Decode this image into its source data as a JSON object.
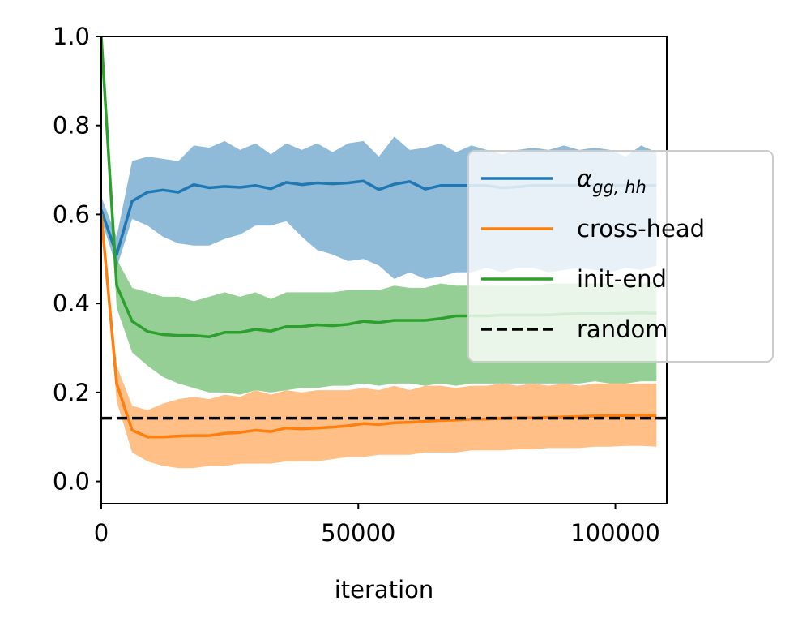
{
  "chart_data": {
    "type": "line",
    "xlabel": "iteration",
    "ylabel": "",
    "xlim": [
      0,
      110000
    ],
    "ylim": [
      -0.05,
      1.0
    ],
    "xticks": [
      0,
      50000,
      100000
    ],
    "xtick_labels": [
      "0",
      "50000",
      "100000"
    ],
    "yticks": [
      0.0,
      0.2,
      0.4,
      0.6,
      0.8,
      1.0
    ],
    "ytick_labels": [
      "0.0",
      "0.2",
      "0.4",
      "0.6",
      "0.8",
      "1.0"
    ],
    "grid": false,
    "legend_position": "right",
    "x": [
      0,
      3000,
      6000,
      9000,
      12000,
      15000,
      18000,
      21000,
      24000,
      27000,
      30000,
      33000,
      36000,
      39000,
      42000,
      45000,
      48000,
      51000,
      54000,
      57000,
      60000,
      63000,
      66000,
      69000,
      72000,
      75000,
      78000,
      81000,
      84000,
      87000,
      90000,
      93000,
      96000,
      99000,
      102000,
      105000,
      108000
    ],
    "series": [
      {
        "name": "α_{gg,hh}",
        "label_main": "α",
        "label_sub": "gg, hh",
        "color": "#1f77b4",
        "style": "solid",
        "values": [
          0.61,
          0.51,
          0.63,
          0.65,
          0.655,
          0.65,
          0.667,
          0.66,
          0.663,
          0.661,
          0.665,
          0.658,
          0.672,
          0.667,
          0.671,
          0.669,
          0.671,
          0.675,
          0.656,
          0.668,
          0.674,
          0.657,
          0.665,
          0.665,
          0.665,
          0.665,
          0.66,
          0.662,
          0.665,
          0.665,
          0.665,
          0.665,
          0.665,
          0.665,
          0.665,
          0.665,
          0.665
        ],
        "upper": [
          0.64,
          0.55,
          0.72,
          0.73,
          0.725,
          0.72,
          0.755,
          0.75,
          0.765,
          0.745,
          0.76,
          0.735,
          0.76,
          0.745,
          0.76,
          0.74,
          0.76,
          0.765,
          0.73,
          0.775,
          0.745,
          0.75,
          0.76,
          0.74,
          0.755,
          0.745,
          0.735,
          0.745,
          0.75,
          0.745,
          0.755,
          0.745,
          0.75,
          0.745,
          0.73,
          0.755,
          0.74
        ],
        "lower": [
          0.59,
          0.48,
          0.59,
          0.575,
          0.55,
          0.535,
          0.53,
          0.53,
          0.545,
          0.555,
          0.575,
          0.575,
          0.585,
          0.55,
          0.52,
          0.51,
          0.495,
          0.5,
          0.485,
          0.455,
          0.47,
          0.455,
          0.46,
          0.47,
          0.47,
          0.48,
          0.47,
          0.48,
          0.48,
          0.47,
          0.475,
          0.48,
          0.475,
          0.47,
          0.48,
          0.475,
          0.485
        ]
      },
      {
        "name": "cross-head",
        "color": "#ff7f0e",
        "style": "solid",
        "values": [
          0.6,
          0.22,
          0.115,
          0.1,
          0.1,
          0.102,
          0.103,
          0.103,
          0.108,
          0.11,
          0.115,
          0.112,
          0.12,
          0.118,
          0.12,
          0.122,
          0.125,
          0.13,
          0.128,
          0.132,
          0.133,
          0.135,
          0.137,
          0.138,
          0.14,
          0.14,
          0.142,
          0.143,
          0.143,
          0.144,
          0.145,
          0.146,
          0.147,
          0.148,
          0.148,
          0.149,
          0.148
        ],
        "upper": [
          0.62,
          0.26,
          0.17,
          0.16,
          0.175,
          0.185,
          0.19,
          0.185,
          0.195,
          0.19,
          0.205,
          0.195,
          0.205,
          0.2,
          0.205,
          0.205,
          0.205,
          0.21,
          0.205,
          0.215,
          0.205,
          0.215,
          0.215,
          0.21,
          0.215,
          0.215,
          0.22,
          0.215,
          0.22,
          0.215,
          0.22,
          0.215,
          0.22,
          0.22,
          0.22,
          0.22,
          0.22
        ],
        "lower": [
          0.58,
          0.18,
          0.065,
          0.045,
          0.035,
          0.03,
          0.03,
          0.035,
          0.035,
          0.04,
          0.04,
          0.04,
          0.045,
          0.045,
          0.045,
          0.05,
          0.055,
          0.055,
          0.06,
          0.06,
          0.06,
          0.065,
          0.065,
          0.065,
          0.07,
          0.07,
          0.07,
          0.072,
          0.072,
          0.075,
          0.075,
          0.075,
          0.078,
          0.078,
          0.08,
          0.08,
          0.078
        ]
      },
      {
        "name": "init-end",
        "color": "#2ca02c",
        "style": "solid",
        "values": [
          1.0,
          0.44,
          0.36,
          0.337,
          0.33,
          0.328,
          0.328,
          0.325,
          0.335,
          0.335,
          0.342,
          0.338,
          0.348,
          0.348,
          0.352,
          0.35,
          0.353,
          0.36,
          0.357,
          0.362,
          0.362,
          0.362,
          0.366,
          0.372,
          0.372,
          0.372,
          0.374,
          0.374,
          0.374,
          0.374,
          0.376,
          0.377,
          0.377,
          0.377,
          0.378,
          0.379,
          0.378
        ],
        "upper": [
          1.0,
          0.5,
          0.435,
          0.425,
          0.415,
          0.415,
          0.405,
          0.415,
          0.425,
          0.415,
          0.425,
          0.41,
          0.425,
          0.425,
          0.425,
          0.425,
          0.43,
          0.43,
          0.43,
          0.44,
          0.435,
          0.435,
          0.445,
          0.44,
          0.44,
          0.44,
          0.44,
          0.44,
          0.44,
          0.445,
          0.445,
          0.445,
          0.445,
          0.445,
          0.445,
          0.445,
          0.45
        ],
        "lower": [
          0.97,
          0.39,
          0.29,
          0.26,
          0.235,
          0.22,
          0.21,
          0.2,
          0.2,
          0.195,
          0.205,
          0.2,
          0.205,
          0.21,
          0.21,
          0.215,
          0.215,
          0.22,
          0.215,
          0.22,
          0.22,
          0.215,
          0.22,
          0.215,
          0.22,
          0.22,
          0.22,
          0.22,
          0.22,
          0.22,
          0.22,
          0.22,
          0.225,
          0.22,
          0.22,
          0.225,
          0.225
        ]
      },
      {
        "name": "random",
        "color": "#000000",
        "style": "dashed",
        "constant": 0.142
      }
    ]
  }
}
